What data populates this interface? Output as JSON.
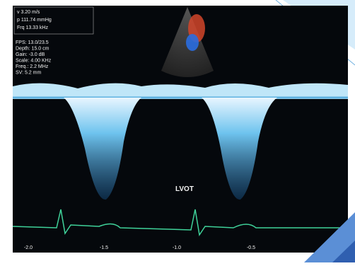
{
  "overlay": {
    "readout": [
      "v 3.20 m/s",
      "p 111.74 mmHg",
      "Frq 13.33 kHz"
    ],
    "settings": [
      "FPS: 13.0/23.5",
      "Depth: 15.0 cm",
      "Gain: -3.0 dB",
      "Scale: 4.00 KHz",
      "Freq.: 2.2 MHz",
      "SV: 5.2 mm"
    ],
    "label": "LVOT",
    "time_labels": [
      "-2.0",
      "-1.5",
      "-1.0",
      "-0.5"
    ]
  }
}
